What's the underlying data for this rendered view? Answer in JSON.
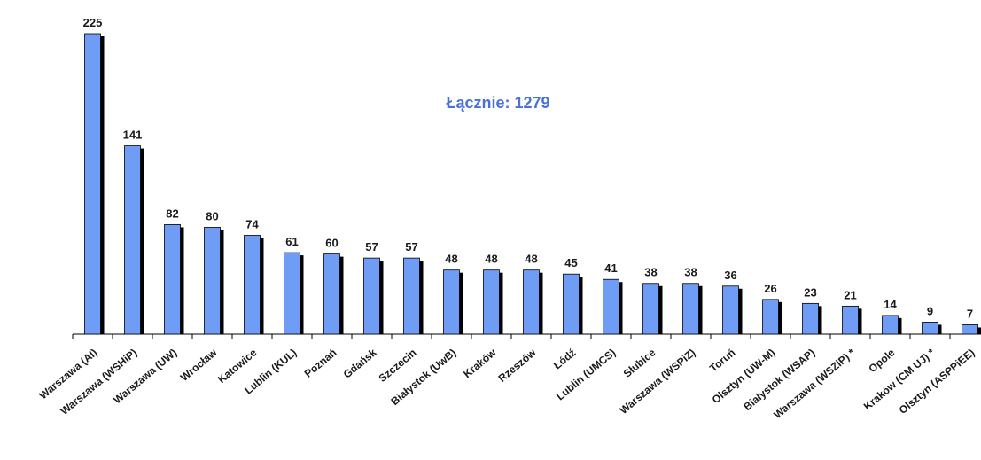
{
  "chart_data": {
    "type": "bar",
    "annotation": "Łącznie: 1279",
    "categories": [
      "Warszawa (AI)",
      "Warszawa (WSHiP)",
      "Warszawa (UW)",
      "Wrocław",
      "Katowice",
      "Lublin (KUL)",
      "Poznań",
      "Gdańsk",
      "Szczecin",
      "Białystok (UwB)",
      "Kraków",
      "Rzeszów",
      "Łódź",
      "Lublin (UMCS)",
      "Słubice",
      "Warszawa (WSPiZ)",
      "Toruń",
      "Olsztyn (UW-M)",
      "Białystok (WSAP)",
      "Warszawa (WSZiP) *",
      "Opole",
      "Kraków (CM UJ) *",
      "Olsztyn (ASPPiEE)"
    ],
    "values": [
      225,
      141,
      82,
      80,
      74,
      61,
      60,
      57,
      57,
      48,
      48,
      48,
      45,
      41,
      38,
      38,
      36,
      26,
      23,
      21,
      14,
      9,
      7
    ],
    "color": "#6f9cf5"
  }
}
